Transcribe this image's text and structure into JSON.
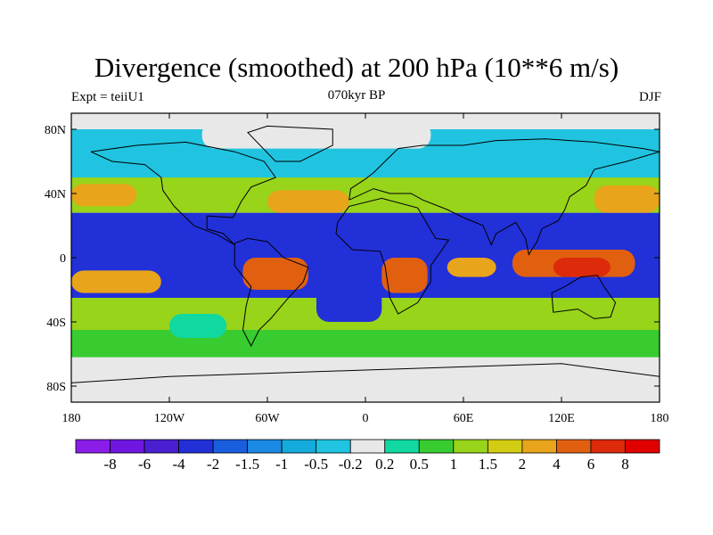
{
  "chart_data": {
    "type": "heatmap",
    "title": "Divergence (smoothed) at 200 hPa (10**6 m/s)",
    "left_label": "Expt = teiiU1",
    "center_label": "070kyr BP",
    "right_label": "DJF",
    "x_ticks": [
      {
        "value": -180,
        "label": "180"
      },
      {
        "value": -120,
        "label": "120W"
      },
      {
        "value": -60,
        "label": "60W"
      },
      {
        "value": 0,
        "label": "0"
      },
      {
        "value": 60,
        "label": "60E"
      },
      {
        "value": 120,
        "label": "120E"
      },
      {
        "value": 180,
        "label": "180"
      }
    ],
    "y_ticks": [
      {
        "value": 80,
        "label": "80N"
      },
      {
        "value": 40,
        "label": "40N"
      },
      {
        "value": 0,
        "label": "0"
      },
      {
        "value": -40,
        "label": "40S"
      },
      {
        "value": -80,
        "label": "80S"
      }
    ],
    "xlim": [
      -180,
      180
    ],
    "ylim": [
      -90,
      90
    ],
    "levels": [
      "-8",
      "-6",
      "-4",
      "-2",
      "-1.5",
      "-1",
      "-0.5",
      "-0.2",
      "0.2",
      "0.5",
      "1",
      "1.5",
      "2",
      "4",
      "6",
      "8"
    ],
    "colors": [
      "#8a1ee8",
      "#6f17e0",
      "#4a1fd2",
      "#2230d8",
      "#1a5ee0",
      "#1a8ae4",
      "#14aadc",
      "#20c4e0",
      "#e8e8e8",
      "#10d8a0",
      "#38cc30",
      "#98d41a",
      "#d2cc12",
      "#e8a41a",
      "#e06010",
      "#dc2a0a",
      "#e00000"
    ],
    "regions": [
      {
        "lon": [
          -180,
          180
        ],
        "lat": [
          -90,
          -60
        ],
        "value": 0
      },
      {
        "lon": [
          -180,
          180
        ],
        "lat": [
          -62,
          -45
        ],
        "value": 0.5
      },
      {
        "lon": [
          -180,
          180
        ],
        "lat": [
          -45,
          -25
        ],
        "value": 1
      },
      {
        "lon": [
          -180,
          180
        ],
        "lat": [
          -25,
          -5
        ],
        "value": -3
      },
      {
        "lon": [
          -180,
          180
        ],
        "lat": [
          -5,
          28
        ],
        "value": -3
      },
      {
        "lon": [
          -180,
          180
        ],
        "lat": [
          28,
          50
        ],
        "value": 1
      },
      {
        "lon": [
          -180,
          180
        ],
        "lat": [
          50,
          90
        ],
        "value": -0.3
      },
      {
        "lon": [
          -180,
          -140
        ],
        "lat": [
          32,
          46
        ],
        "value": 2
      },
      {
        "lon": [
          -60,
          -10
        ],
        "lat": [
          28,
          42
        ],
        "value": 2
      },
      {
        "lon": [
          140,
          180
        ],
        "lat": [
          28,
          45
        ],
        "value": 2.5
      },
      {
        "lon": [
          -180,
          -125
        ],
        "lat": [
          -22,
          -8
        ],
        "value": 2
      },
      {
        "lon": [
          -75,
          -35
        ],
        "lat": [
          -20,
          0
        ],
        "value": 5
      },
      {
        "lon": [
          10,
          38
        ],
        "lat": [
          -22,
          0
        ],
        "value": 5
      },
      {
        "lon": [
          50,
          80
        ],
        "lat": [
          -12,
          0
        ],
        "value": 3
      },
      {
        "lon": [
          90,
          165
        ],
        "lat": [
          -12,
          5
        ],
        "value": 4
      },
      {
        "lon": [
          115,
          150
        ],
        "lat": [
          -12,
          0
        ],
        "value": 7
      },
      {
        "lon": [
          -120,
          -85
        ],
        "lat": [
          -50,
          -35
        ],
        "value": 0.3
      },
      {
        "lon": [
          -30,
          10
        ],
        "lat": [
          -40,
          -18
        ],
        "value": -3
      },
      {
        "lon": [
          -180,
          180
        ],
        "lat": [
          80,
          90
        ],
        "value": 0
      },
      {
        "lon": [
          -100,
          40
        ],
        "lat": [
          68,
          85
        ],
        "value": 0
      }
    ]
  }
}
